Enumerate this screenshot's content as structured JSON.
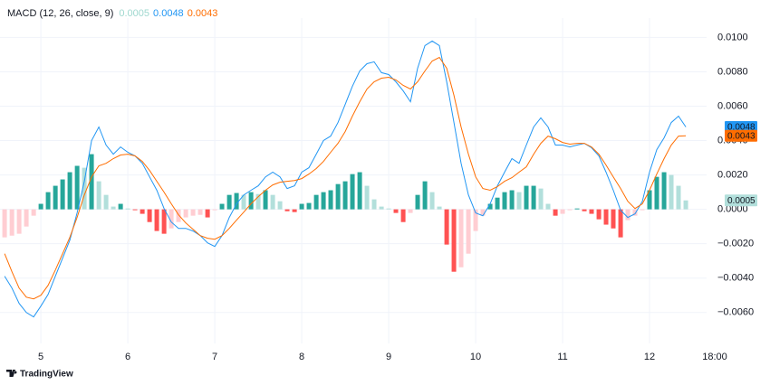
{
  "chart_data": {
    "type": "line",
    "title": "MACD (12, 26, close, 9)",
    "brand": "TradingView",
    "x": [
      4.583,
      4.667,
      4.75,
      4.833,
      4.917,
      5,
      5.083,
      5.167,
      5.25,
      5.333,
      5.417,
      5.5,
      5.583,
      5.667,
      5.75,
      5.833,
      5.917,
      6,
      6.083,
      6.167,
      6.25,
      6.333,
      6.417,
      6.5,
      6.583,
      6.667,
      6.75,
      6.833,
      6.917,
      7,
      7.083,
      7.167,
      7.25,
      7.333,
      7.417,
      7.5,
      7.583,
      7.667,
      7.75,
      7.833,
      7.917,
      8,
      8.083,
      8.167,
      8.25,
      8.333,
      8.417,
      8.5,
      8.583,
      8.667,
      8.75,
      8.833,
      8.917,
      9,
      9.083,
      9.167,
      9.25,
      9.333,
      9.417,
      9.5,
      9.583,
      9.667,
      9.75,
      9.833,
      9.917,
      10,
      10.083,
      10.167,
      10.25,
      10.333,
      10.417,
      10.5,
      10.583,
      10.667,
      10.75,
      10.833,
      10.917,
      11,
      11.083,
      11.167,
      11.25,
      11.333,
      11.417,
      11.5,
      11.583,
      11.667,
      11.75,
      11.833,
      11.917,
      12,
      12.083,
      12.167,
      12.25,
      12.333,
      12.417
    ],
    "series": [
      {
        "type": "bar",
        "colors": [
          "#26a69a",
          "#b2dfdb",
          "#ff5252",
          "#ffcdd2"
        ],
        "last_value_label": "0.0005",
        "values": [
          -0.00163,
          -0.00153,
          -0.00142,
          -0.001,
          -0.00037,
          0.00032,
          0.001,
          0.00137,
          0.00174,
          0.00216,
          0.00253,
          0.00242,
          0.00321,
          0.00163,
          0.00084,
          0.00016,
          0.00032,
          5e-05,
          -5e-05,
          -0.00026,
          -0.00074,
          -0.00126,
          -0.00142,
          -0.00111,
          -0.00074,
          -0.00047,
          -0.00037,
          -0.00032,
          -0.00047,
          -5e-05,
          0.00032,
          0.00084,
          0.00095,
          0.00084,
          0.001,
          0.00089,
          0.00111,
          0.00084,
          0.00047,
          -0.00011,
          -0.00016,
          0.00032,
          0.00037,
          0.00084,
          0.001,
          0.00111,
          0.00147,
          0.00163,
          0.00205,
          0.00216,
          0.00137,
          0.00058,
          0.00016,
          5e-05,
          -0.00021,
          -0.00074,
          -0.00021,
          0.00084,
          0.00163,
          0.001,
          0.00016,
          -0.00205,
          -0.00363,
          -0.00337,
          -0.00258,
          -0.00126,
          -0.00037,
          0.00032,
          0.00068,
          0.001,
          0.00111,
          0.001,
          0.00137,
          0.00137,
          0.00121,
          0.00032,
          -0.00037,
          -0.00026,
          -5e-05,
          5e-05,
          -0.00011,
          -0.00026,
          -0.00058,
          -0.00089,
          -0.00111,
          -0.00163,
          -0.00063,
          -0.00037,
          -5e-05,
          0.00111,
          0.00189,
          0.00216,
          0.002,
          0.00137,
          0.00052
        ]
      },
      {
        "type": "line",
        "color": "#2196f3",
        "last_value_label": "0.0048",
        "values": [
          -0.00389,
          -0.00458,
          -0.00547,
          -0.006,
          -0.00626,
          -0.00563,
          -0.00495,
          -0.00389,
          -0.00284,
          -0.00179,
          -0.00021,
          0.00163,
          0.004,
          0.00479,
          0.00374,
          0.00321,
          0.00363,
          0.00332,
          0.00311,
          0.00268,
          0.00189,
          0.00111,
          5e-05,
          -0.00074,
          -0.00111,
          -0.00111,
          -0.00126,
          -0.00153,
          -0.00195,
          -0.00216,
          -0.00153,
          -0.00047,
          0.00032,
          0.00084,
          0.00111,
          0.00137,
          0.00189,
          0.00216,
          0.00189,
          0.00121,
          0.00137,
          0.00216,
          0.00242,
          0.00321,
          0.004,
          0.00426,
          0.00505,
          0.00611,
          0.00716,
          0.00805,
          0.00847,
          0.00858,
          0.00795,
          0.00784,
          0.00742,
          0.00689,
          0.00626,
          0.00821,
          0.00953,
          0.00979,
          0.00953,
          0.00742,
          0.00505,
          0.00268,
          0.00084,
          -0.00021,
          -0.00037,
          0.00032,
          0.00137,
          0.00216,
          0.00295,
          0.00268,
          0.00374,
          0.00479,
          0.00532,
          0.00479,
          0.00374,
          0.00374,
          0.00363,
          0.00374,
          0.00384,
          0.00358,
          0.00311,
          0.00216,
          0.00111,
          -5e-05,
          -0.00047,
          -0.00026,
          0.00047,
          0.00216,
          0.00347,
          0.00416,
          0.00505,
          0.00542,
          0.00479
        ]
      },
      {
        "type": "line",
        "color": "#ff6d00",
        "last_value_label": "0.0043",
        "values": [
          -0.00258,
          -0.00363,
          -0.00458,
          -0.00511,
          -0.00521,
          -0.005,
          -0.00442,
          -0.00353,
          -0.00258,
          -0.00163,
          -0.00047,
          0.00084,
          0.00189,
          0.00253,
          0.00268,
          0.00295,
          0.00316,
          0.00321,
          0.00311,
          0.00279,
          0.00226,
          0.00163,
          0.001,
          0.00032,
          -0.00032,
          -0.00079,
          -0.00116,
          -0.00153,
          -0.00168,
          -0.00174,
          -0.00153,
          -0.00111,
          -0.00063,
          -0.00016,
          0.00032,
          0.00074,
          0.00111,
          0.00142,
          0.00158,
          0.00163,
          0.00168,
          0.00179,
          0.00205,
          0.00237,
          0.00279,
          0.00332,
          0.00384,
          0.00453,
          0.00542,
          0.00626,
          0.007,
          0.00742,
          0.00763,
          0.00768,
          0.00753,
          0.00721,
          0.007,
          0.00742,
          0.00805,
          0.00863,
          0.00884,
          0.00821,
          0.00663,
          0.00479,
          0.00321,
          0.00189,
          0.00121,
          0.00111,
          0.00132,
          0.00163,
          0.00184,
          0.00216,
          0.00247,
          0.00321,
          0.00384,
          0.00426,
          0.00411,
          0.00389,
          0.00379,
          0.00384,
          0.00384,
          0.00363,
          0.00321,
          0.00258,
          0.00189,
          0.00121,
          0.00047,
          5e-05,
          0.00032,
          0.00111,
          0.00205,
          0.00295,
          0.00374,
          0.00426,
          0.00428
        ]
      }
    ],
    "xlim": [
      4.53,
      12.656
    ],
    "xticks": [
      5,
      6,
      7,
      8,
      9,
      10,
      11,
      12,
      {
        "value": 12.75,
        "label": "18:00"
      }
    ],
    "ylim": [
      -0.0078,
      0.0106
    ],
    "yticks": [
      {
        "value": 0.01,
        "label": "0.0100"
      },
      {
        "value": 0.008,
        "label": "0.0080"
      },
      {
        "value": 0.006,
        "label": "0.0060"
      },
      {
        "value": 0.004,
        "label": "0.0040"
      },
      {
        "value": 0.002,
        "label": "0.0020"
      },
      {
        "value": 0,
        "label": "0.0000"
      },
      {
        "value": -0.002,
        "label": "−0.0020"
      },
      {
        "value": -0.004,
        "label": "−0.0040"
      },
      {
        "value": -0.006,
        "label": "−0.0060"
      }
    ],
    "grid": true
  }
}
